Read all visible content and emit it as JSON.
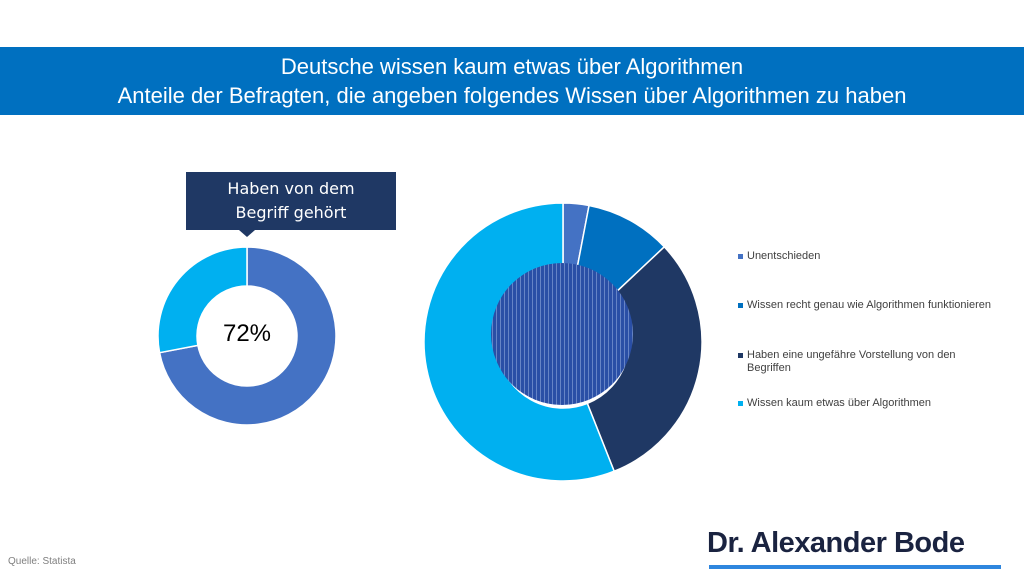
{
  "header": {
    "title_line1": "Deutsche wissen kaum etwas über Algorithmen",
    "title_line2": "Anteile der Befragten, die angeben folgendes Wissen über Algorithmen zu haben"
  },
  "callout": {
    "text_line1": "Haben von dem",
    "text_line2": "Begriff gehört"
  },
  "footer": {
    "source": "Quelle: Statista",
    "logo": "Dr. Alexander Bode"
  },
  "chart_data": [
    {
      "type": "pie",
      "variant": "donut",
      "center_label": "72%",
      "values": [
        72,
        28
      ],
      "colors": [
        "#4472C4",
        "#00B0F0"
      ]
    },
    {
      "type": "pie",
      "variant": "donut",
      "legend_position": "right",
      "categories": [
        "Unentschieden",
        "Wissen recht genau wie Algorithmen funktionieren",
        "Haben eine ungefähre Vorstellung von den Begriffen",
        "Wissen kaum etwas über Algorithmen"
      ],
      "values": [
        3,
        10,
        31,
        56
      ],
      "colors": [
        "#4472C4",
        "#0070C0",
        "#1F3864",
        "#00B0F0"
      ]
    }
  ]
}
